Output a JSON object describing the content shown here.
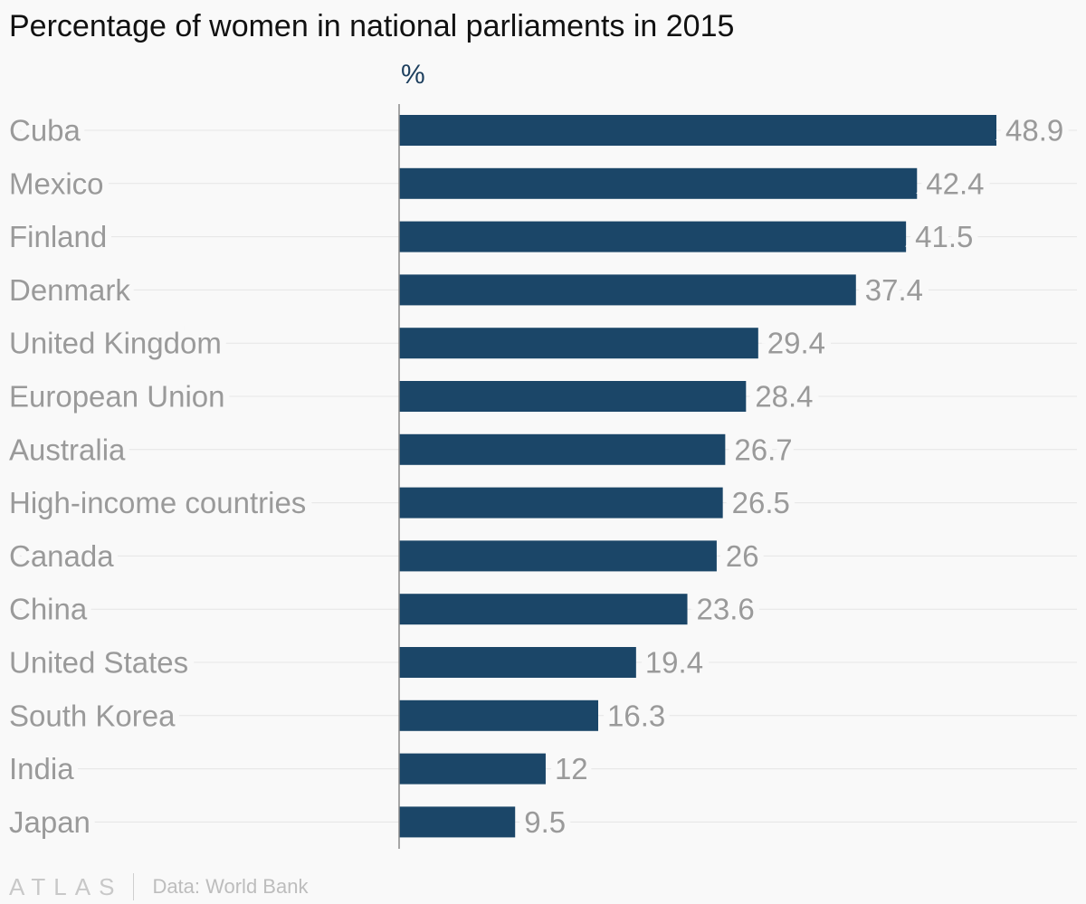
{
  "chart_data": {
    "type": "bar",
    "orientation": "horizontal",
    "title": "Percentage of women in national parliaments in 2015",
    "unit_label": "%",
    "categories": [
      "Cuba",
      "Mexico",
      "Finland",
      "Denmark",
      "United Kingdom",
      "European Union",
      "Australia",
      "High-income countries",
      "Canada",
      "China",
      "United States",
      "South Korea",
      "India",
      "Japan"
    ],
    "values": [
      48.9,
      42.4,
      41.5,
      37.4,
      29.4,
      28.4,
      26.7,
      26.5,
      26,
      23.6,
      19.4,
      16.3,
      12,
      9.5
    ],
    "xlim": [
      0,
      50
    ],
    "grid": true,
    "bar_color": "#1b4668",
    "label_color": "#9a9a9a"
  },
  "footer": {
    "brand": "ATLAS",
    "source": "Data: World Bank"
  }
}
